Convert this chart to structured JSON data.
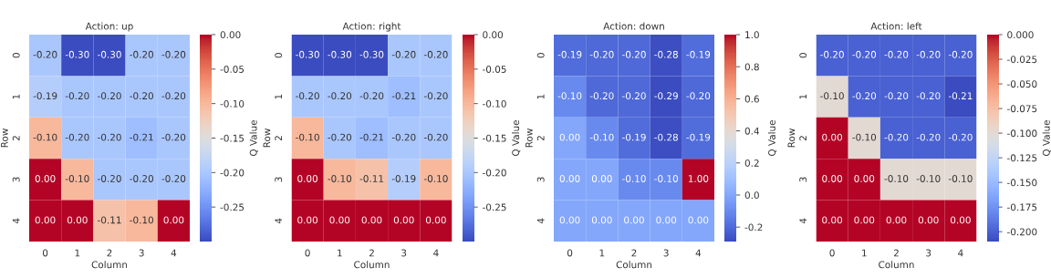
{
  "chart_data": [
    {
      "type": "heatmap",
      "title": "Action: up",
      "xlabel": "Column",
      "ylabel": "Row",
      "clabel": "Q Value",
      "categories": [
        "0",
        "1",
        "2",
        "3",
        "4"
      ],
      "y_categories": [
        "0",
        "1",
        "2",
        "3",
        "4"
      ],
      "cells": [
        [
          -0.2,
          -0.3,
          -0.3,
          -0.2,
          -0.2
        ],
        [
          -0.19,
          -0.2,
          -0.2,
          -0.2,
          -0.2
        ],
        [
          -0.1,
          -0.2,
          -0.2,
          -0.21,
          -0.2
        ],
        [
          0.0,
          -0.1,
          -0.2,
          -0.2,
          -0.2
        ],
        [
          0.0,
          0.0,
          -0.11,
          -0.1,
          0.0
        ]
      ],
      "cell_labels": [
        [
          "-0.20",
          "-0.30",
          "-0.30",
          "-0.20",
          "-0.20"
        ],
        [
          "-0.19",
          "-0.20",
          "-0.20",
          "-0.20",
          "-0.20"
        ],
        [
          "-0.10",
          "-0.20",
          "-0.20",
          "-0.21",
          "-0.20"
        ],
        [
          "0.00",
          "-0.10",
          "-0.20",
          "-0.20",
          "-0.20"
        ],
        [
          "0.00",
          "0.00",
          "-0.11",
          "-0.10",
          "0.00"
        ]
      ],
      "clim": [
        -0.3,
        0.0
      ],
      "cticks": [
        {
          "value": 0.0,
          "label": "0.00"
        },
        {
          "value": -0.05,
          "label": "-0.05"
        },
        {
          "value": -0.1,
          "label": "-0.10"
        },
        {
          "value": -0.15,
          "label": "-0.15"
        },
        {
          "value": -0.2,
          "label": "-0.20"
        },
        {
          "value": -0.25,
          "label": "-0.25"
        }
      ],
      "data_labels": true
    },
    {
      "type": "heatmap",
      "title": "Action: right",
      "xlabel": "Column",
      "ylabel": "Row",
      "clabel": "Q Value",
      "categories": [
        "0",
        "1",
        "2",
        "3",
        "4"
      ],
      "y_categories": [
        "0",
        "1",
        "2",
        "3",
        "4"
      ],
      "cells": [
        [
          -0.3,
          -0.3,
          -0.3,
          -0.2,
          -0.2
        ],
        [
          -0.2,
          -0.2,
          -0.2,
          -0.21,
          -0.2
        ],
        [
          -0.1,
          -0.2,
          -0.21,
          -0.2,
          -0.2
        ],
        [
          0.0,
          -0.1,
          -0.11,
          -0.19,
          -0.1
        ],
        [
          0.0,
          0.0,
          0.0,
          0.0,
          0.0
        ]
      ],
      "cell_labels": [
        [
          "-0.30",
          "-0.30",
          "-0.30",
          "-0.20",
          "-0.20"
        ],
        [
          "-0.20",
          "-0.20",
          "-0.20",
          "-0.21",
          "-0.20"
        ],
        [
          "-0.10",
          "-0.20",
          "-0.21",
          "-0.20",
          "-0.20"
        ],
        [
          "0.00",
          "-0.10",
          "-0.11",
          "-0.19",
          "-0.10"
        ],
        [
          "0.00",
          "0.00",
          "0.00",
          "0.00",
          "0.00"
        ]
      ],
      "clim": [
        -0.3,
        0.0
      ],
      "cticks": [
        {
          "value": 0.0,
          "label": "0.00"
        },
        {
          "value": -0.05,
          "label": "-0.05"
        },
        {
          "value": -0.1,
          "label": "-0.10"
        },
        {
          "value": -0.15,
          "label": "-0.15"
        },
        {
          "value": -0.2,
          "label": "-0.20"
        },
        {
          "value": -0.25,
          "label": "-0.25"
        }
      ],
      "data_labels": true
    },
    {
      "type": "heatmap",
      "title": "Action: down",
      "xlabel": "Column",
      "ylabel": "Row",
      "clabel": "Q Value",
      "categories": [
        "0",
        "1",
        "2",
        "3",
        "4"
      ],
      "y_categories": [
        "0",
        "1",
        "2",
        "3",
        "4"
      ],
      "cells": [
        [
          -0.19,
          -0.2,
          -0.2,
          -0.28,
          -0.19
        ],
        [
          -0.1,
          -0.2,
          -0.2,
          -0.29,
          -0.2
        ],
        [
          0.0,
          -0.1,
          -0.19,
          -0.28,
          -0.19
        ],
        [
          0.0,
          0.0,
          -0.1,
          -0.1,
          1.0
        ],
        [
          0.0,
          0.0,
          0.0,
          0.0,
          0.0
        ]
      ],
      "cell_labels": [
        [
          "-0.19",
          "-0.20",
          "-0.20",
          "-0.28",
          "-0.19"
        ],
        [
          "-0.10",
          "-0.20",
          "-0.20",
          "-0.29",
          "-0.20"
        ],
        [
          "0.00",
          "-0.10",
          "-0.19",
          "-0.28",
          "-0.19"
        ],
        [
          "0.00",
          "0.00",
          "-0.10",
          "-0.10",
          "1.00"
        ],
        [
          "0.00",
          "0.00",
          "0.00",
          "0.00",
          "0.00"
        ]
      ],
      "clim": [
        -0.29,
        1.0
      ],
      "cticks": [
        {
          "value": 1.0,
          "label": "1.0"
        },
        {
          "value": 0.8,
          "label": "0.8"
        },
        {
          "value": 0.6,
          "label": "0.6"
        },
        {
          "value": 0.4,
          "label": "0.4"
        },
        {
          "value": 0.2,
          "label": "0.2"
        },
        {
          "value": 0.0,
          "label": "0.0"
        },
        {
          "value": -0.2,
          "label": "-0.2"
        }
      ],
      "data_labels": true
    },
    {
      "type": "heatmap",
      "title": "Action: left",
      "xlabel": "Column",
      "ylabel": "Row",
      "clabel": "Q Value",
      "categories": [
        "0",
        "1",
        "2",
        "3",
        "4"
      ],
      "y_categories": [
        "0",
        "1",
        "2",
        "3",
        "4"
      ],
      "cells": [
        [
          -0.2,
          -0.2,
          -0.2,
          -0.2,
          -0.2
        ],
        [
          -0.1,
          -0.2,
          -0.2,
          -0.2,
          -0.21
        ],
        [
          0.0,
          -0.1,
          -0.2,
          -0.2,
          -0.2
        ],
        [
          0.0,
          0.0,
          -0.1,
          -0.1,
          -0.1
        ],
        [
          0.0,
          0.0,
          0.0,
          0.0,
          0.0
        ]
      ],
      "cell_labels": [
        [
          "-0.20",
          "-0.20",
          "-0.20",
          "-0.20",
          "-0.20"
        ],
        [
          "-0.10",
          "-0.20",
          "-0.20",
          "-0.20",
          "-0.21"
        ],
        [
          "0.00",
          "-0.10",
          "-0.20",
          "-0.20",
          "-0.20"
        ],
        [
          "0.00",
          "0.00",
          "-0.10",
          "-0.10",
          "-0.10"
        ],
        [
          "0.00",
          "0.00",
          "0.00",
          "0.00",
          "0.00"
        ]
      ],
      "clim": [
        -0.21,
        0.0
      ],
      "cticks": [
        {
          "value": 0.0,
          "label": "0.000"
        },
        {
          "value": -0.025,
          "label": "-0.025"
        },
        {
          "value": -0.05,
          "label": "-0.050"
        },
        {
          "value": -0.075,
          "label": "-0.075"
        },
        {
          "value": -0.1,
          "label": "-0.100"
        },
        {
          "value": -0.125,
          "label": "-0.125"
        },
        {
          "value": -0.15,
          "label": "-0.150"
        },
        {
          "value": -0.175,
          "label": "-0.175"
        },
        {
          "value": -0.2,
          "label": "-0.200"
        }
      ],
      "data_labels": true
    }
  ]
}
